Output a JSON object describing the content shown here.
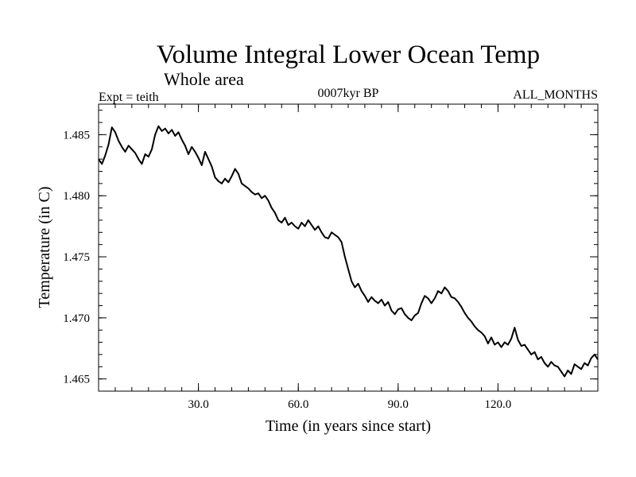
{
  "chart_data": {
    "type": "line",
    "title": "Volume Integral Lower Ocean Temp",
    "subtitle": "Whole area",
    "experiment_label": "Expt = teith",
    "period_label": "0007kyr BP",
    "months_label": "ALL_MONTHS",
    "xlabel": "Time (in years since start)",
    "ylabel": "Temperature (in C)",
    "xlim": [
      0,
      150
    ],
    "ylim": [
      1.464,
      1.4875
    ],
    "x_ticks": [
      30,
      60,
      90,
      120
    ],
    "x_tick_labels": [
      "30.0",
      "60.0",
      "90.0",
      "120.0"
    ],
    "x_minor_step": 5,
    "y_ticks": [
      1.465,
      1.47,
      1.475,
      1.48,
      1.485
    ],
    "y_tick_labels": [
      "1.465",
      "1.470",
      "1.475",
      "1.480",
      "1.485"
    ],
    "y_minor_step": 0.001,
    "grid": false,
    "series": [
      {
        "name": "Volume Integral Lower Ocean Temp",
        "x": [
          0,
          1,
          2,
          3,
          4,
          5,
          6,
          7,
          8,
          9,
          10,
          11,
          12,
          13,
          14,
          15,
          16,
          17,
          18,
          19,
          20,
          21,
          22,
          23,
          24,
          25,
          26,
          27,
          28,
          29,
          30,
          31,
          32,
          33,
          34,
          35,
          36,
          37,
          38,
          39,
          40,
          41,
          42,
          43,
          44,
          45,
          46,
          47,
          48,
          49,
          50,
          51,
          52,
          53,
          54,
          55,
          56,
          57,
          58,
          59,
          60,
          61,
          62,
          63,
          64,
          65,
          66,
          67,
          68,
          69,
          70,
          71,
          72,
          73,
          74,
          75,
          76,
          77,
          78,
          79,
          80,
          81,
          82,
          83,
          84,
          85,
          86,
          87,
          88,
          89,
          90,
          91,
          92,
          93,
          94,
          95,
          96,
          97,
          98,
          99,
          100,
          101,
          102,
          103,
          104,
          105,
          106,
          107,
          108,
          109,
          110,
          111,
          112,
          113,
          114,
          115,
          116,
          117,
          118,
          119,
          120,
          121,
          122,
          123,
          124,
          125,
          126,
          127,
          128,
          129,
          130,
          131,
          132,
          133,
          134,
          135,
          136,
          137,
          138,
          139,
          140,
          141,
          142,
          143,
          144,
          145,
          146,
          147,
          148,
          149,
          150
        ],
        "values": [
          1.483,
          1.4826,
          1.4833,
          1.4842,
          1.4856,
          1.4852,
          1.4845,
          1.484,
          1.4836,
          1.4841,
          1.4838,
          1.4835,
          1.483,
          1.4826,
          1.4834,
          1.4832,
          1.4838,
          1.485,
          1.4857,
          1.4853,
          1.4855,
          1.4851,
          1.4854,
          1.4849,
          1.4852,
          1.4846,
          1.4841,
          1.4834,
          1.484,
          1.4836,
          1.4831,
          1.4825,
          1.4836,
          1.483,
          1.4824,
          1.4815,
          1.4812,
          1.481,
          1.4814,
          1.4811,
          1.4816,
          1.4822,
          1.4818,
          1.481,
          1.4808,
          1.4806,
          1.4803,
          1.4801,
          1.4802,
          1.4798,
          1.48,
          1.4796,
          1.479,
          1.4786,
          1.478,
          1.4778,
          1.4782,
          1.4776,
          1.4778,
          1.4775,
          1.4773,
          1.4778,
          1.4775,
          1.478,
          1.4776,
          1.4772,
          1.4775,
          1.477,
          1.4766,
          1.4765,
          1.477,
          1.4768,
          1.4766,
          1.4762,
          1.475,
          1.474,
          1.473,
          1.4725,
          1.4728,
          1.4722,
          1.4718,
          1.4713,
          1.4717,
          1.4714,
          1.4712,
          1.4715,
          1.471,
          1.4713,
          1.4706,
          1.4703,
          1.4707,
          1.4708,
          1.4703,
          1.47,
          1.4698,
          1.4702,
          1.4704,
          1.4712,
          1.4718,
          1.4716,
          1.4712,
          1.4716,
          1.4722,
          1.472,
          1.4725,
          1.4722,
          1.4717,
          1.4716,
          1.4713,
          1.4709,
          1.4704,
          1.47,
          1.4697,
          1.4693,
          1.469,
          1.4688,
          1.4685,
          1.4679,
          1.4684,
          1.4678,
          1.468,
          1.4676,
          1.468,
          1.4678,
          1.4683,
          1.4692,
          1.4682,
          1.4677,
          1.4678,
          1.4674,
          1.467,
          1.4672,
          1.4666,
          1.4668,
          1.4663,
          1.466,
          1.4664,
          1.4661,
          1.466,
          1.4656,
          1.4652,
          1.4657,
          1.4654,
          1.4662,
          1.466,
          1.4658,
          1.4663,
          1.4661,
          1.4667,
          1.467,
          1.4666
        ]
      }
    ]
  }
}
